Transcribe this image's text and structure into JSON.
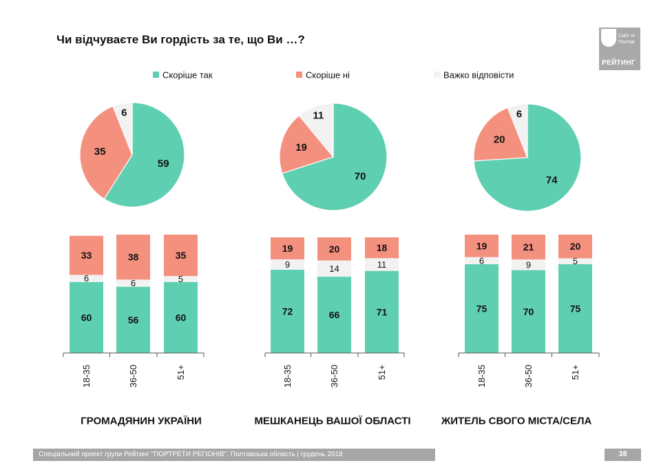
{
  "title": "Чи відчуваєте Ви гордість за те, що Ви …?",
  "logo": {
    "site_text": "Сайт ні\nПолтав",
    "word": "РЕЙТИНГ"
  },
  "colors": {
    "yes": "#5fcfb1",
    "no": "#f4907e",
    "hard": "#f2f2f2"
  },
  "chart_data": {
    "type": "pie+stacked-bar",
    "legend": {
      "position": "top",
      "entries": [
        "Скоріше так",
        "Скоріше ні",
        "Важко відповісти"
      ]
    },
    "panels": [
      {
        "label": "ГРОМАДЯНИН УКРАЇНИ",
        "pie": [
          59,
          35,
          6
        ],
        "bars": [
          {
            "category": "18-35",
            "yes": 60,
            "hard": 6,
            "no": 33
          },
          {
            "category": "36-50",
            "yes": 56,
            "hard": 6,
            "no": 38
          },
          {
            "category": "51+",
            "yes": 60,
            "hard": 5,
            "no": 35
          }
        ]
      },
      {
        "label": "МЕШКАНЕЦЬ ВАШОЇ ОБЛАСТІ",
        "pie": [
          70,
          19,
          11
        ],
        "bars": [
          {
            "category": "18-35",
            "yes": 72,
            "hard": 9,
            "no": 19
          },
          {
            "category": "36-50",
            "yes": 66,
            "hard": 14,
            "no": 20
          },
          {
            "category": "51+",
            "yes": 71,
            "hard": 11,
            "no": 18
          }
        ]
      },
      {
        "label": "ЖИТЕЛЬ СВОГО МІСТА/СЕЛА",
        "pie": [
          74,
          20,
          6
        ],
        "bars": [
          {
            "category": "18-35",
            "yes": 75,
            "hard": 6,
            "no": 19
          },
          {
            "category": "36-50",
            "yes": 70,
            "hard": 9,
            "no": 21
          },
          {
            "category": "51+",
            "yes": 75,
            "hard": 5,
            "no": 20
          }
        ]
      }
    ]
  },
  "footer": {
    "text": "Спеціальний проект групи Рейтинг \"ПОРТРЕТИ РЕГІОНІВ\". Полтавська область | грудень 2018",
    "page": "38"
  }
}
